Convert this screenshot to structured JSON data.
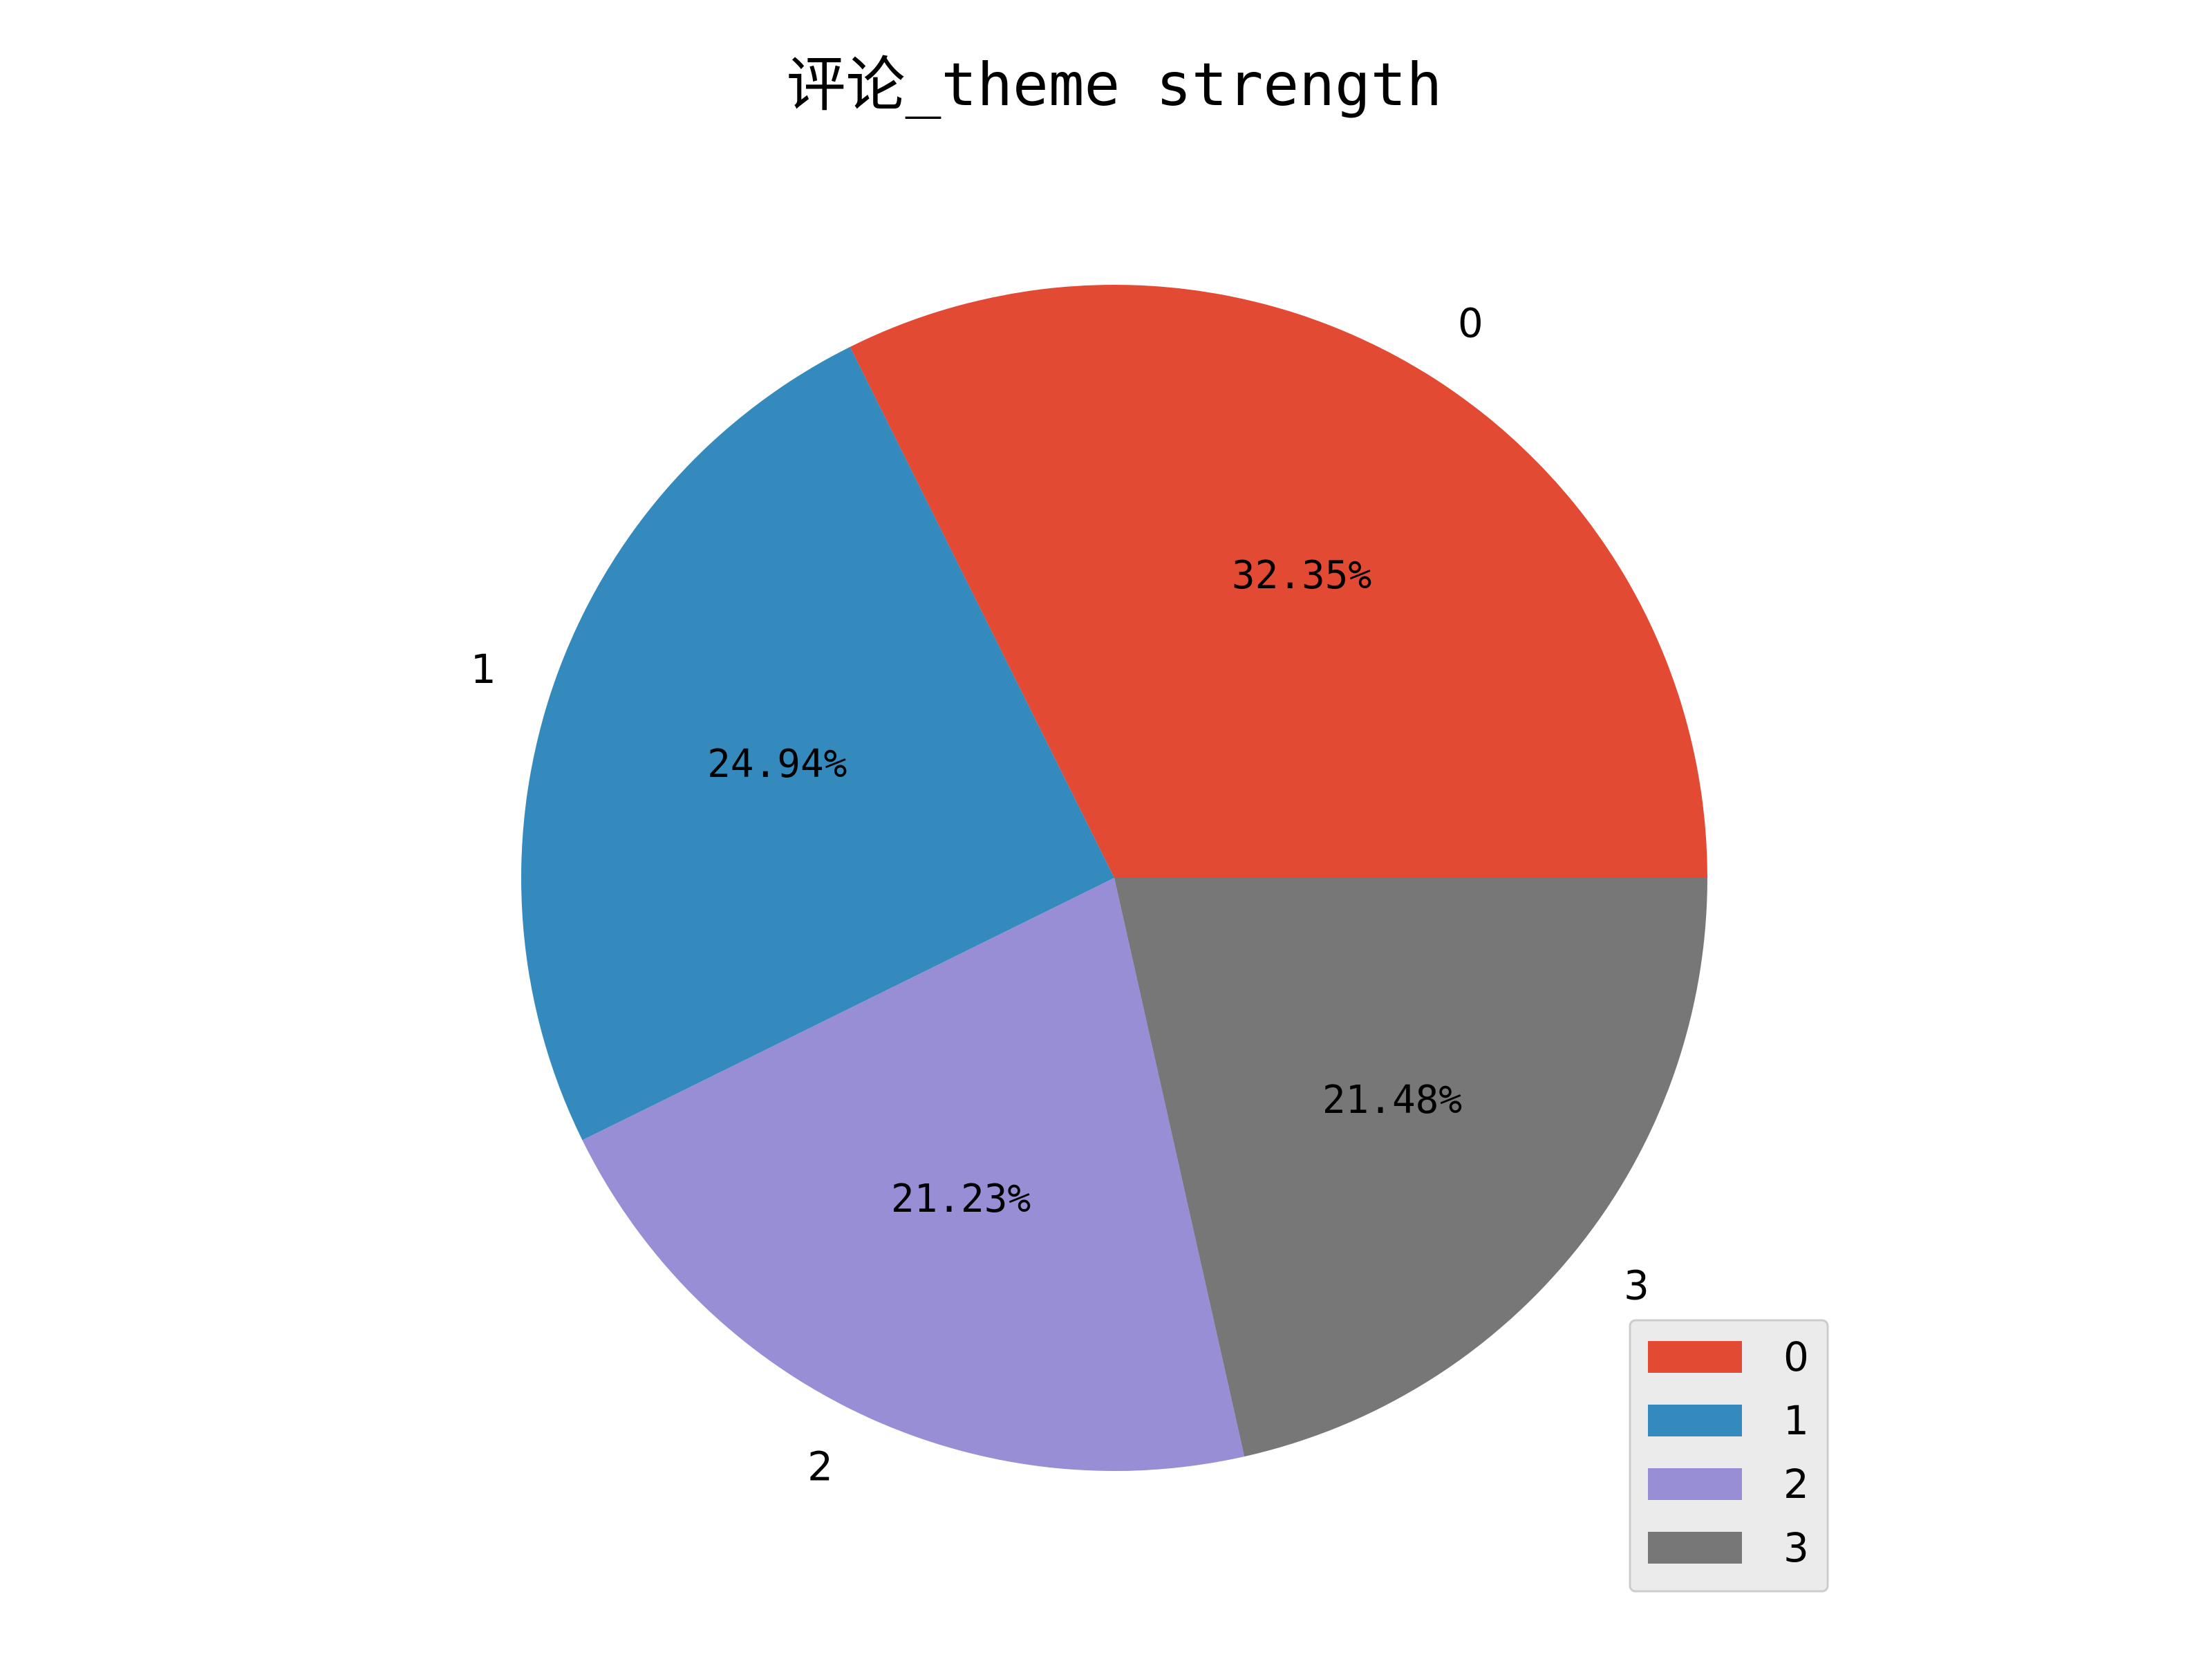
{
  "chart_data": {
    "type": "pie",
    "title": "评论_theme strength",
    "categories": [
      "0",
      "1",
      "2",
      "3"
    ],
    "values": [
      32.35,
      24.94,
      21.23,
      21.48
    ],
    "value_labels": [
      "32.35%",
      "24.94%",
      "21.23%",
      "21.48%"
    ],
    "colors": [
      "#E24A33",
      "#348ABD",
      "#988ED5",
      "#777777"
    ],
    "start_angle_deg": 0,
    "direction": "counterclockwise",
    "legend": {
      "placement": "lower-right",
      "entries": [
        "0",
        "1",
        "2",
        "3"
      ]
    }
  }
}
